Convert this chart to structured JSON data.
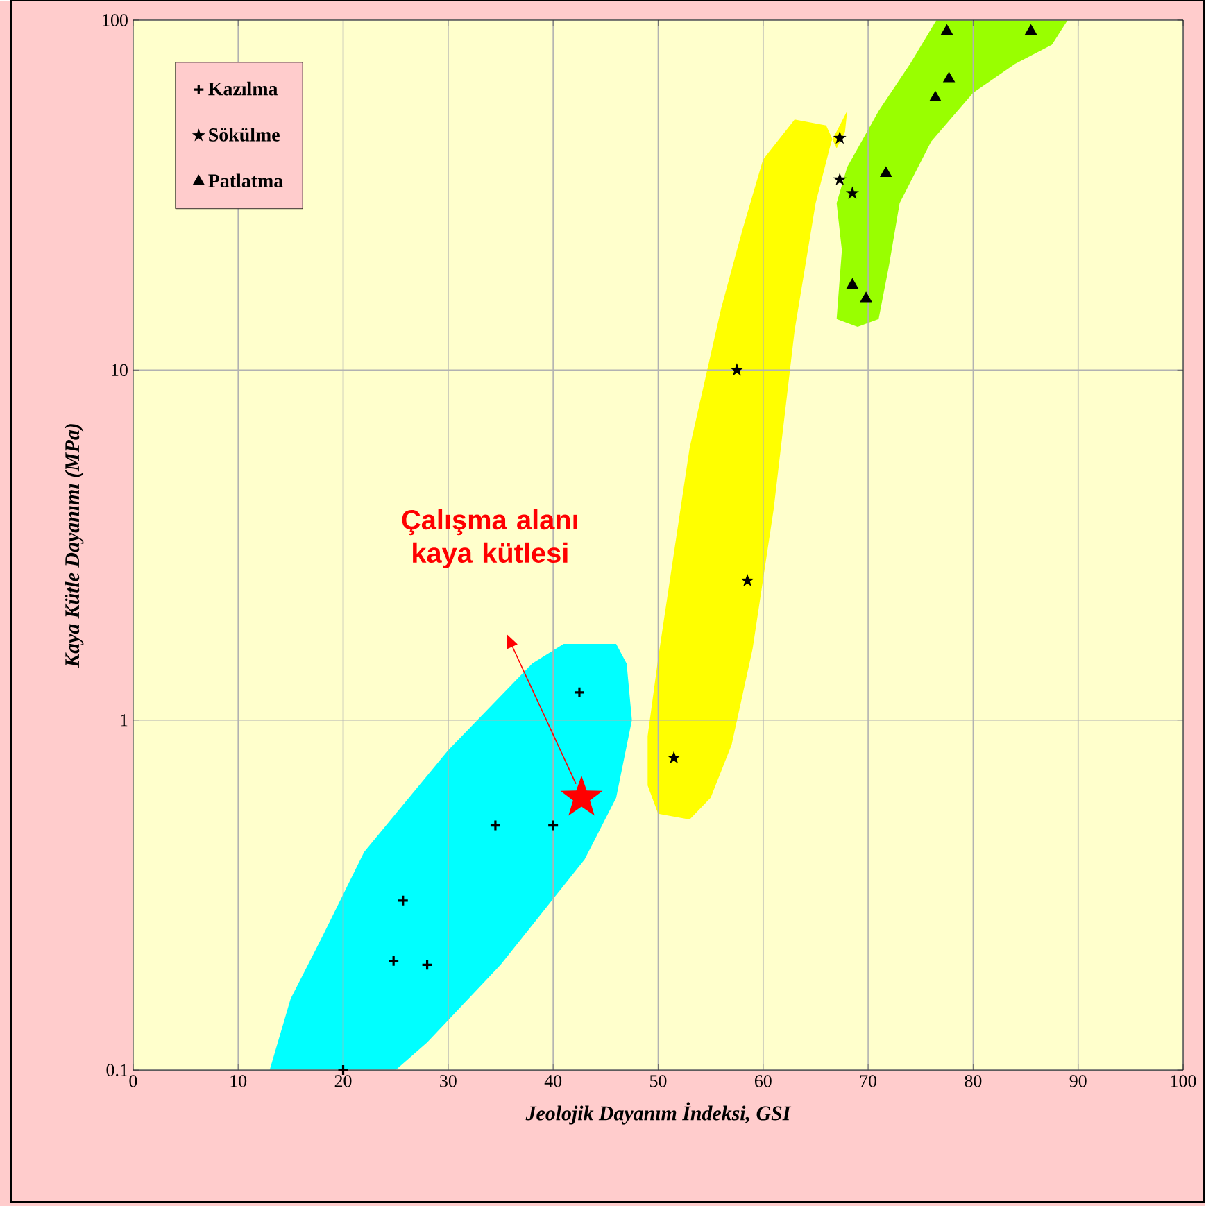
{
  "chart_data": {
    "type": "scatter",
    "xlabel": "Jeolojik Dayanım İndeksi, GSI",
    "ylabel": "Kaya Kütle Dayanımı (MPa)",
    "xlim": [
      0,
      100
    ],
    "ylim": [
      0.1,
      100
    ],
    "log": "y",
    "grid": true,
    "legend": "top left",
    "xticks": [
      0,
      10,
      20,
      30,
      40,
      50,
      60,
      70,
      80,
      90,
      100
    ],
    "yticks": [
      {
        "value": 0.1,
        "label": "0.1"
      },
      1,
      10,
      100
    ],
    "series": [
      {
        "name": "Kazılma",
        "color": "#000000",
        "marker": "cross",
        "x": [
          20,
          24.8,
          25.7,
          28,
          34.5,
          40,
          42.5
        ],
        "values": [
          0.1,
          0.205,
          0.305,
          0.2,
          0.5,
          0.5,
          1.2
        ]
      },
      {
        "name": "Sökülme",
        "color": "#000000",
        "marker": "star",
        "x": [
          51.5,
          57.5,
          58.5,
          67.3,
          67.3,
          68.5
        ],
        "values": [
          0.78,
          10,
          2.5,
          46,
          35,
          32
        ]
      },
      {
        "name": "Patlatma",
        "color": "#000000",
        "marker": "triangle",
        "x": [
          68.5,
          69.8,
          71.7,
          76.4,
          77.5,
          77.7,
          85.5
        ],
        "values": [
          17.5,
          16,
          36.5,
          60,
          93,
          68,
          93
        ]
      },
      {
        "color": "#ff0000",
        "marker": "star",
        "x": [
          42.7
        ],
        "values": [
          0.6
        ]
      }
    ],
    "annotations": [
      "Çalışma alanı kaya kütlesi"
    ]
  }
}
